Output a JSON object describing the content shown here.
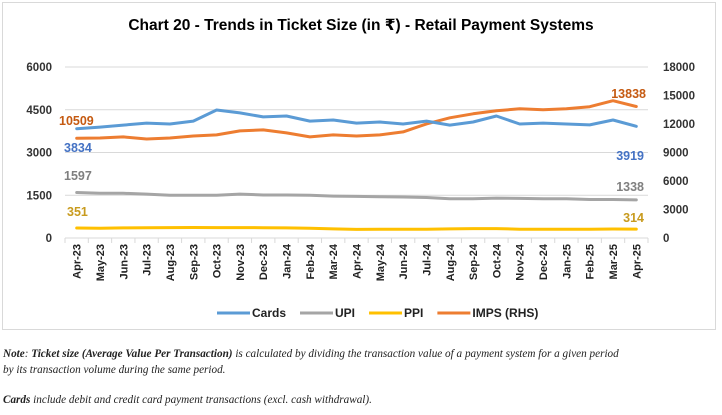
{
  "chart_data": {
    "type": "line",
    "title": "Chart 20 - Trends in Ticket Size (in ₹) - Retail Payment Systems",
    "xlabel": "",
    "ylabel": "",
    "y2label": "",
    "ylim": [
      0,
      6000
    ],
    "y2lim": [
      0,
      18000
    ],
    "yticks": [
      "0",
      "1500",
      "3000",
      "4500",
      "6000"
    ],
    "y2ticks": [
      "0",
      "3000",
      "6000",
      "9000",
      "12000",
      "15000",
      "18000"
    ],
    "grid": true,
    "legend_position": "bottom",
    "categories": [
      "Apr-23",
      "May-23",
      "Jun-23",
      "Jul-23",
      "Aug-23",
      "Sep-23",
      "Oct-23",
      "Nov-23",
      "Dec-23",
      "Jan-24",
      "Feb-24",
      "Mar-24",
      "Apr-24",
      "May-24",
      "Jun-24",
      "Jul-24",
      "Aug-24",
      "Sep-24",
      "Oct-24",
      "Nov-24",
      "Dec-24",
      "Jan-25",
      "Feb-25",
      "Mar-25",
      "Apr-25"
    ],
    "series": [
      {
        "name": "Cards",
        "axis": "left",
        "color": "#5B9BD5",
        "label_color": "#4472C4",
        "values": [
          3834,
          3890,
          3960,
          4030,
          4000,
          4100,
          4490,
          4390,
          4250,
          4280,
          4100,
          4140,
          4030,
          4070,
          4000,
          4100,
          3960,
          4070,
          4280,
          4000,
          4030,
          4000,
          3970,
          4140,
          3919
        ],
        "start_label": "3834",
        "end_label": "3919"
      },
      {
        "name": "UPI",
        "axis": "left",
        "color": "#A5A5A5",
        "label_color": "#7F7F7F",
        "values": [
          1597,
          1570,
          1570,
          1540,
          1500,
          1500,
          1500,
          1540,
          1510,
          1510,
          1500,
          1470,
          1460,
          1450,
          1440,
          1420,
          1380,
          1380,
          1400,
          1390,
          1380,
          1380,
          1350,
          1350,
          1338
        ],
        "start_label": "1597",
        "end_label": "1338"
      },
      {
        "name": "PPI",
        "axis": "left",
        "color": "#FFC000",
        "label_color": "#C89B1E",
        "values": [
          351,
          340,
          355,
          360,
          365,
          370,
          365,
          365,
          360,
          355,
          345,
          320,
          300,
          310,
          310,
          310,
          320,
          330,
          330,
          310,
          310,
          305,
          310,
          315,
          314
        ],
        "start_label": "351",
        "end_label": "314"
      },
      {
        "name": "IMPS (RHS)",
        "axis": "right",
        "color": "#ED7D31",
        "label_color": "#C55A11",
        "values": [
          10509,
          10530,
          10640,
          10420,
          10530,
          10740,
          10850,
          11270,
          11380,
          11060,
          10640,
          10850,
          10740,
          10850,
          11170,
          12010,
          12650,
          13070,
          13390,
          13600,
          13490,
          13600,
          13820,
          14450,
          13838
        ],
        "start_label": "10509",
        "end_label": "13838"
      }
    ]
  },
  "notes": {
    "note1_prefix": "Note",
    "note1_sep": ": ",
    "note1_bold": "Ticket size (Average Value Per Transaction)",
    "note1_rest": " is calculated by dividing the transaction value of a payment system for a given period",
    "note1_line2": "by its transaction volume during the same period.",
    "note2_bold": "Cards",
    "note2_rest": " include debit and credit card payment transactions (excl. cash withdrawal)."
  }
}
